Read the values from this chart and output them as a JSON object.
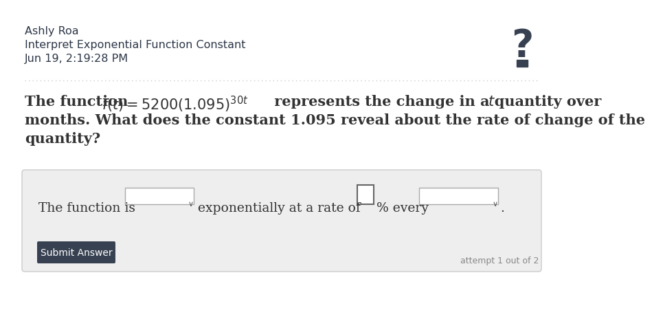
{
  "name": "Ashly Roa",
  "subtitle": "Interpret Exponential Function Constant",
  "date": "Jun 19, 2:19:28 PM",
  "question_line2": "months. What does the constant 1.095 reveal about the rate of change of the",
  "question_line3": "quantity?",
  "submit_btn": "Submit Answer",
  "attempt_text": "attempt 1 out of 2",
  "white_bg": "#ffffff",
  "page_bg": "#ffffff",
  "answer_box_bg": "#eeeeee",
  "answer_box_border": "#cccccc",
  "text_dark": "#2d3748",
  "text_medium": "#333333",
  "text_light": "#888888",
  "question_mark_color": "#374151",
  "btn_color": "#374151",
  "btn_text": "#ffffff",
  "input_border": "#aaaaaa",
  "input_bg": "#ffffff",
  "dropdown_border": "#aaaaaa",
  "dotted_color": "#cccccc",
  "header_fontsize": 11.5,
  "question_fontsize": 15.0,
  "answer_fontsize": 13.5
}
